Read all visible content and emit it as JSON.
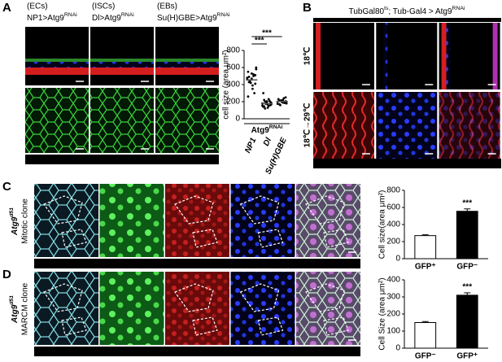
{
  "panel_a": {
    "label": "A",
    "columns": [
      {
        "cell_type": "(ECs)",
        "genotype": "NP1>Atg9",
        "genotype_sup": "RNAi"
      },
      {
        "cell_type": "(ISCs)",
        "genotype": "Dl>Atg9",
        "genotype_sup": "RNAi"
      },
      {
        "cell_type": "(EBs)",
        "genotype": "Su(H)GBE>Atg9",
        "genotype_sup": "RNAi"
      }
    ],
    "stains": [
      {
        "text": "Phalloidin",
        "color": "#ff2a2a"
      },
      {
        "text": "Dlg",
        "color": "#e6e63a"
      },
      {
        "text": "DAPI",
        "color": "#3a6bff"
      }
    ]
  },
  "panel_b": {
    "label": "B",
    "title": "TubGal80",
    "title_sup": "ts",
    "title_rest": "; Tub-Gal4 > Atg9",
    "title_sup2": "RNAi",
    "rows": [
      "18℃",
      "18℃→29℃"
    ],
    "stains": [
      {
        "text": "Phalloidin",
        "color": "#ff2a2a"
      },
      {
        "text": "DAPI",
        "color": "#3a6bff"
      }
    ]
  },
  "panel_c": {
    "label": "C",
    "genotype": "Atg9",
    "genotype_sup": "d51",
    "clone": "Mitotic clone",
    "stains": [
      {
        "text": "Dlg",
        "color": "#a9d8ff"
      },
      {
        "text": "GFP",
        "color": "#3ddc3d"
      },
      {
        "text": "Atg9",
        "color": "#ff2a2a"
      },
      {
        "text": "DAPI",
        "color": "#3a6bff"
      }
    ]
  },
  "panel_d": {
    "label": "D",
    "genotype": "Atg9",
    "genotype_sup": "d51",
    "clone": "MARCM clone",
    "stains": [
      {
        "text": "Dlg",
        "color": "#a9d8ff"
      },
      {
        "text": "GFP",
        "color": "#3ddc3d"
      },
      {
        "text": "Pdm1",
        "color": "#ff2a2a"
      },
      {
        "text": "DAPI",
        "color": "#3a6bff"
      }
    ]
  },
  "chart_data": [
    {
      "type": "strip",
      "y_label": "cell size (area μm²)",
      "ylim": [
        0,
        800
      ],
      "yticks": [
        0,
        200,
        400,
        600,
        800
      ],
      "group_label": "Atg9",
      "group_label_sup": "RNAi",
      "categories": [
        "NP1",
        "Dl",
        "Su(H)GBE"
      ],
      "points": [
        [
          480,
          520,
          450,
          600,
          390,
          430,
          510,
          470,
          550,
          300,
          420,
          460,
          500,
          440,
          580,
          350,
          490,
          410,
          530,
          260
        ],
        [
          180,
          150,
          200,
          170,
          130,
          220,
          160,
          190,
          140,
          210,
          175,
          155,
          230,
          120,
          185,
          165,
          145,
          195,
          205,
          300
        ],
        [
          200,
          190,
          210,
          180,
          220,
          170,
          205,
          195,
          230,
          185,
          215,
          175,
          240,
          160,
          200,
          190,
          210,
          250
        ]
      ],
      "means": [
        455,
        177,
        202
      ],
      "annotations": [
        "***",
        "***"
      ],
      "color": "#000000"
    },
    {
      "type": "bar",
      "y_label": "Cell size(area μm²)",
      "ylim": [
        0,
        800
      ],
      "yticks": [
        0,
        200,
        400,
        600,
        800
      ],
      "categories": [
        "GFP⁺",
        "GFP⁻"
      ],
      "values": [
        270,
        555
      ],
      "errors": [
        10,
        28
      ],
      "colors": [
        "#ffffff",
        "#000000"
      ],
      "annotations": [
        null,
        "***"
      ]
    },
    {
      "type": "bar",
      "y_label": "Cell Size (area μm²)",
      "ylim": [
        0,
        400
      ],
      "yticks": [
        0,
        100,
        200,
        300,
        400
      ],
      "categories": [
        "GFP⁻",
        "GFP⁺"
      ],
      "values": [
        150,
        310
      ],
      "errors": [
        6,
        14
      ],
      "colors": [
        "#ffffff",
        "#000000"
      ],
      "annotations": [
        null,
        "***"
      ]
    }
  ]
}
